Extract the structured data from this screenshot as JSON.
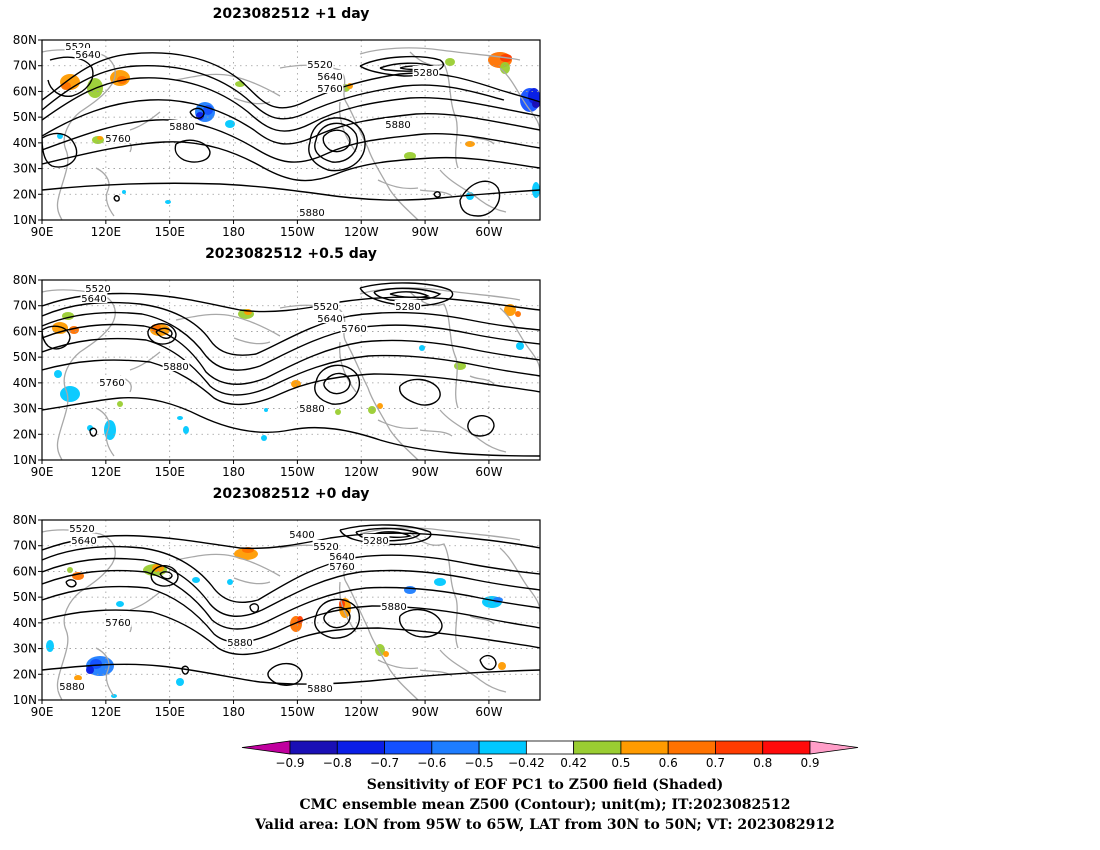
{
  "panels": [
    {
      "title": "2023082512  +1 day",
      "contour_labels": [
        "5520",
        "5640",
        "5520",
        "5640",
        "5760",
        "5280",
        "5880",
        "5880",
        "5760",
        "5880"
      ]
    },
    {
      "title": "2023082512  +0.5 day",
      "contour_labels": [
        "5520",
        "5640",
        "5520",
        "5280",
        "5640",
        "5760",
        "5880",
        "5760",
        "5880"
      ]
    },
    {
      "title": "2023082512  +0 day",
      "contour_labels": [
        "5520",
        "5640",
        "5400",
        "5280",
        "5520",
        "5640",
        "5760",
        "5880",
        "5760",
        "5880",
        "5880",
        "5880"
      ]
    }
  ],
  "lat_ticks": [
    "80N",
    "70N",
    "60N",
    "50N",
    "40N",
    "30N",
    "20N",
    "10N"
  ],
  "lon_ticks": [
    "90E",
    "120E",
    "150E",
    "180",
    "150W",
    "120W",
    "90W",
    "60W"
  ],
  "colorbar": {
    "tick_labels": [
      "−0.9",
      "−0.8",
      "−0.7",
      "−0.6",
      "−0.5",
      "−0.42",
      "0.42",
      "0.5",
      "0.6",
      "0.7",
      "0.8",
      "0.9"
    ],
    "colors": [
      "#c0009e",
      "#1a0fb5",
      "#0a1ee6",
      "#1450ff",
      "#1e7dff",
      "#00c8ff",
      "#ffffff",
      "#9acd32",
      "#ff9b00",
      "#ff7200",
      "#ff3c00",
      "#ff0a0a",
      "#ff9ec8"
    ]
  },
  "captions": {
    "line1": "Sensitivity of EOF PC1 to Z500 field (Shaded)",
    "line2": "CMC ensemble mean Z500 (Contour); unit(m); IT:2023082512",
    "line3": "Valid area: LON from 95W to 65W, LAT from 30N to 50N; VT: 2023082912"
  }
}
